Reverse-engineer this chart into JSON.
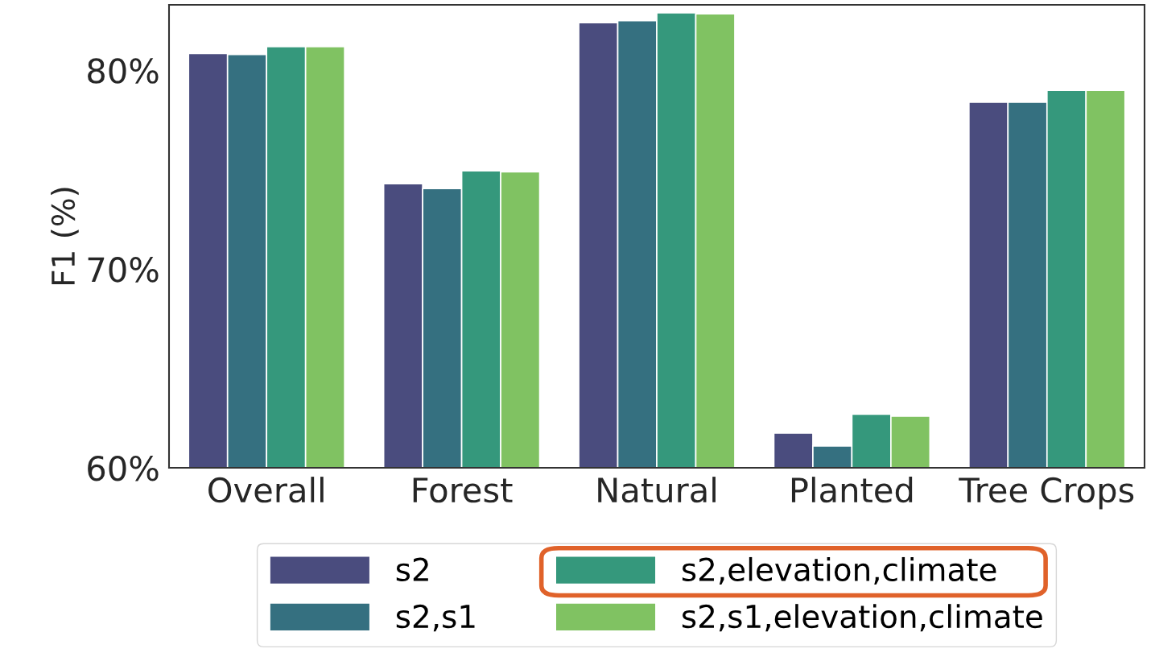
{
  "chart_data": {
    "type": "bar",
    "ylabel": "F1 (%)",
    "categories": [
      "Overall",
      "Forest",
      "Natural",
      "Planted",
      "Tree Crops"
    ],
    "series": [
      {
        "name": "s2",
        "color": "#4a4c7e",
        "values": [
          80.85,
          74.3,
          82.4,
          61.75,
          78.4
        ]
      },
      {
        "name": "s2,s1",
        "color": "#357080",
        "values": [
          80.8,
          74.05,
          82.5,
          61.1,
          78.4
        ]
      },
      {
        "name": "s2,elevation,climate",
        "color": "#35987c",
        "values": [
          81.2,
          74.95,
          82.9,
          62.7,
          79.0
        ]
      },
      {
        "name": "s2,s1,elevation,climate",
        "color": "#80c262",
        "values": [
          81.2,
          74.9,
          82.85,
          62.6,
          79.0
        ]
      }
    ],
    "ylim": [
      60,
      83.3
    ],
    "yticks": [
      {
        "value": 60,
        "label": "60%"
      },
      {
        "value": 70,
        "label": "70%"
      },
      {
        "value": 80,
        "label": "80%"
      }
    ],
    "grid": false,
    "legend": "bottom"
  }
}
